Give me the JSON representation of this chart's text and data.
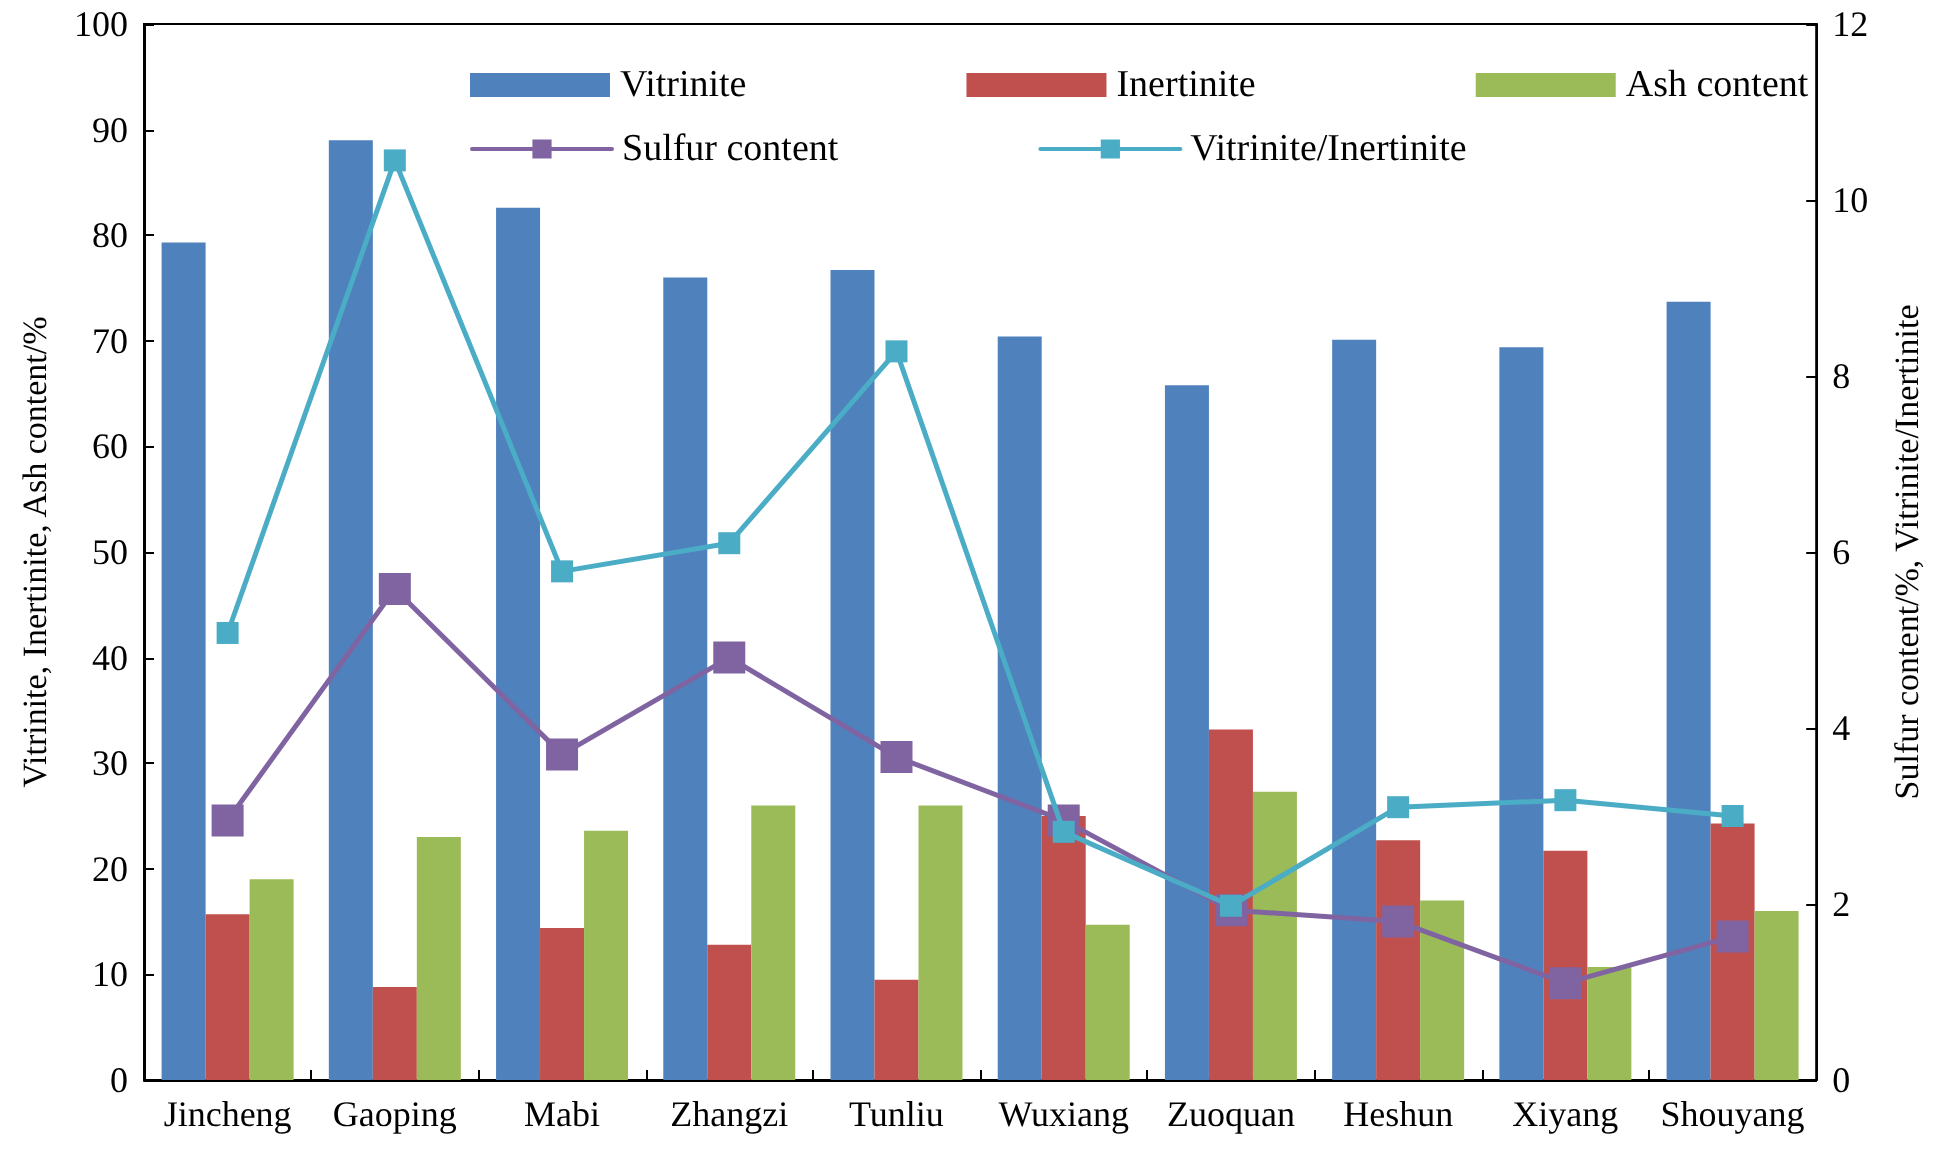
{
  "chart_data": {
    "type": "bar",
    "categories": [
      "Jincheng",
      "Gaoping",
      "Mabi",
      "Zhangzi",
      "Tunliu",
      "Wuxiang",
      "Zuoquan",
      "Heshun",
      "Xiyang",
      "Shouyang"
    ],
    "series": [
      {
        "name": "Vitrinite",
        "color": "#4f81bd",
        "values": [
          79.3,
          89,
          82.6,
          76,
          76.7,
          70.4,
          65.8,
          70.1,
          69.4,
          73.7
        ]
      },
      {
        "name": "Inertinite",
        "color": "#c0504d",
        "values": [
          15.7,
          8.8,
          14.4,
          12.8,
          9.5,
          25,
          33.2,
          22.7,
          21.7,
          24.3
        ]
      },
      {
        "name": "Ash content",
        "color": "#9bbb59",
        "values": [
          19,
          23,
          23.6,
          26,
          26,
          14.7,
          27.3,
          17,
          10.7,
          16
        ]
      },
      {
        "name": "Sulfur content",
        "type": "line",
        "axis": "y2",
        "color": "#8064a2",
        "values": [
          2.95,
          5.58,
          3.7,
          4.8,
          3.67,
          2.95,
          1.93,
          1.8,
          1.1,
          1.63
        ]
      },
      {
        "name": "Vitrinite/Inertinite",
        "type": "line",
        "axis": "y2",
        "color": "#4bacc6",
        "values": [
          5.08,
          10.45,
          5.78,
          6.1,
          8.28,
          2.82,
          1.98,
          3.1,
          3.18,
          3.0
        ]
      }
    ],
    "ylabel": "Vitrinite, Inertinite, Ash content/%",
    "y2label": "Sulfur content/%, Vitrinite/Inertinite",
    "ylim": [
      0,
      100
    ],
    "yticks": [
      0,
      10,
      20,
      30,
      40,
      50,
      60,
      70,
      80,
      90,
      100
    ],
    "y2lim": [
      0,
      12
    ],
    "y2ticks": [
      0,
      2,
      4,
      6,
      8,
      10,
      12
    ],
    "legend": "top",
    "marker": "square",
    "line_style": "solid",
    "grid": false
  }
}
